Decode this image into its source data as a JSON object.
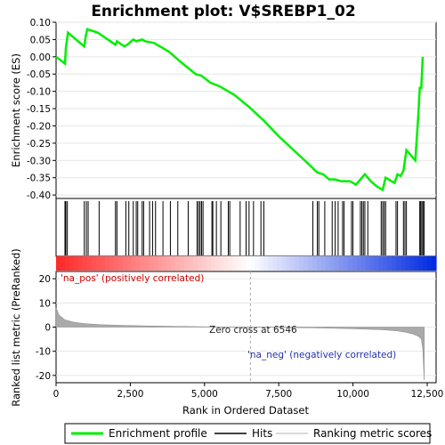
{
  "chart_data": [
    {
      "type": "line",
      "title": "Enrichment plot: V$SREBP1_02",
      "ylabel": "Enrichment score (ES)",
      "xlim": [
        0,
        12800
      ],
      "ylim": [
        -0.41,
        0.1
      ],
      "yticks": [
        "0.10",
        "0.05",
        "0.00",
        "-0.05",
        "-0.10",
        "-0.15",
        "-0.20",
        "-0.25",
        "-0.30",
        "-0.35",
        "-0.40"
      ],
      "grid": true,
      "series": [
        {
          "name": "Enrichment profile",
          "color": "#00ee00",
          "x": [
            0,
            300,
            330,
            400,
            950,
            1000,
            1050,
            1400,
            2000,
            2050,
            2300,
            2400,
            2600,
            2700,
            2900,
            3000,
            3300,
            3500,
            3800,
            4200,
            4700,
            4900,
            5200,
            5500,
            6000,
            6500,
            7000,
            7500,
            8000,
            8500,
            8800,
            9000,
            9200,
            9400,
            9600,
            9900,
            10100,
            10200,
            10300,
            10400,
            10600,
            10800,
            11000,
            11100,
            11300,
            11400,
            11500,
            11600,
            11700,
            11750,
            11800,
            12100,
            12200,
            12250,
            12300,
            12350
          ],
          "y": [
            0.0,
            -0.02,
            0.025,
            0.07,
            0.03,
            0.06,
            0.08,
            0.07,
            0.035,
            0.045,
            0.03,
            0.035,
            0.05,
            0.045,
            0.05,
            0.045,
            0.04,
            0.03,
            0.015,
            -0.015,
            -0.05,
            -0.055,
            -0.075,
            -0.085,
            -0.11,
            -0.145,
            -0.185,
            -0.23,
            -0.27,
            -0.31,
            -0.335,
            -0.34,
            -0.355,
            -0.355,
            -0.36,
            -0.36,
            -0.37,
            -0.36,
            -0.35,
            -0.34,
            -0.36,
            -0.375,
            -0.385,
            -0.35,
            -0.36,
            -0.365,
            -0.34,
            -0.345,
            -0.33,
            -0.3,
            -0.27,
            -0.3,
            -0.17,
            -0.09,
            -0.09,
            0.0
          ]
        }
      ]
    },
    {
      "type": "scatter",
      "title": "",
      "series": [
        {
          "name": "Hits",
          "x": [
            300,
            330,
            380,
            950,
            1020,
            1080,
            1450,
            2000,
            2050,
            2350,
            2450,
            2600,
            2700,
            2750,
            2900,
            2950,
            3150,
            3250,
            3350,
            3600,
            3850,
            4100,
            4450,
            4750,
            4800,
            4850,
            4900,
            4950,
            5250,
            5280,
            5400,
            5550,
            5800,
            5850,
            6200,
            6400,
            6500,
            6650,
            6900,
            7000,
            8650,
            8800,
            8850,
            9050,
            9300,
            9400,
            9500,
            9650,
            9700,
            9950,
            10000,
            10250,
            10300,
            10350,
            10400,
            10500,
            10950,
            11000,
            11050,
            11100,
            11450,
            11500,
            11700,
            11750,
            11800,
            12250,
            12280,
            12320,
            12360,
            12400
          ]
        }
      ]
    },
    {
      "type": "area",
      "title": "",
      "ylabel": "Ranked list metric (PreRanked)",
      "xlabel": "Rank in Ordered Dataset",
      "xlim": [
        0,
        12800
      ],
      "ylim": [
        -23,
        23
      ],
      "xticks": [
        "0",
        "2,500",
        "5,000",
        "7,500",
        "10,000",
        "12,500"
      ],
      "yticks": [
        "20",
        "10",
        "0",
        "-10",
        "-20"
      ],
      "series": [
        {
          "name": "Ranking metric scores",
          "color": "#aaaaaa",
          "x": [
            0,
            100,
            300,
            600,
            1000,
            1500,
            2000,
            3000,
            4000,
            5000,
            6000,
            6546,
            7000,
            8000,
            9000,
            10000,
            11000,
            11500,
            11800,
            12000,
            12200,
            12300,
            12350,
            12400
          ],
          "y": [
            8.0,
            5.0,
            3.0,
            2.0,
            1.4,
            1.0,
            0.8,
            0.5,
            0.3,
            0.15,
            0.05,
            0.0,
            -0.05,
            -0.2,
            -0.4,
            -0.7,
            -1.1,
            -1.6,
            -2.2,
            -2.8,
            -3.8,
            -5.0,
            -9.0,
            -22.0
          ]
        }
      ],
      "annotations": [
        "'na_pos' (positively correlated)",
        "Zero cross at 6546",
        "'na_neg' (negatively correlated)"
      ],
      "zero_cross": 6546
    }
  ],
  "legend": {
    "items": [
      "Enrichment profile",
      "Hits",
      "Ranking metric scores"
    ],
    "placement": "bottom"
  }
}
